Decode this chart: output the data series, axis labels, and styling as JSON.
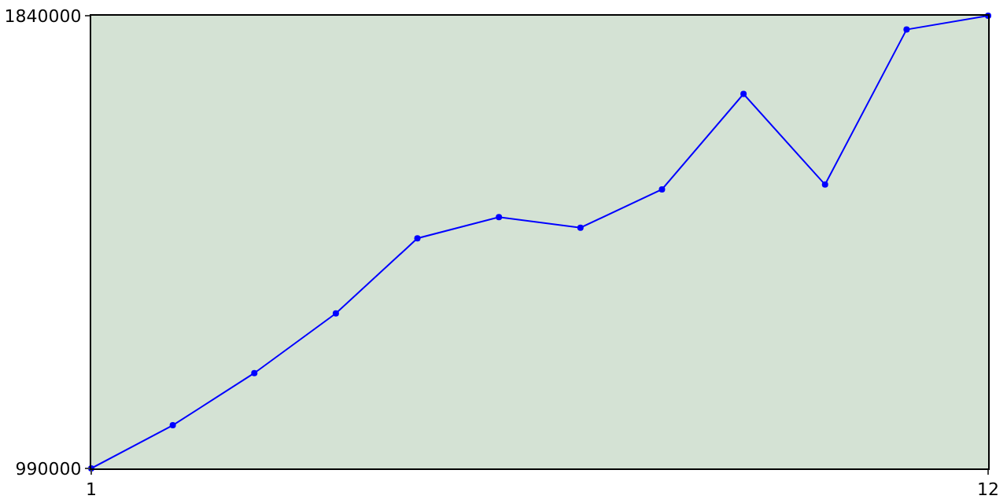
{
  "chart_data": {
    "type": "line",
    "x": [
      1,
      2,
      3,
      4,
      5,
      6,
      7,
      8,
      9,
      10,
      11,
      12
    ],
    "series": [
      {
        "color": "#0000ff",
        "values": [
          990000,
          1071000,
          1169000,
          1281000,
          1422000,
          1462000,
          1442000,
          1514000,
          1693000,
          1523000,
          1814000,
          1840000
        ]
      }
    ],
    "xlim": [
      1,
      12
    ],
    "xticks": [
      1,
      12
    ],
    "ylim": [
      990000,
      1840000
    ],
    "yticks": [
      990000,
      1840000
    ],
    "marker": "circle",
    "line_style": "solid"
  }
}
